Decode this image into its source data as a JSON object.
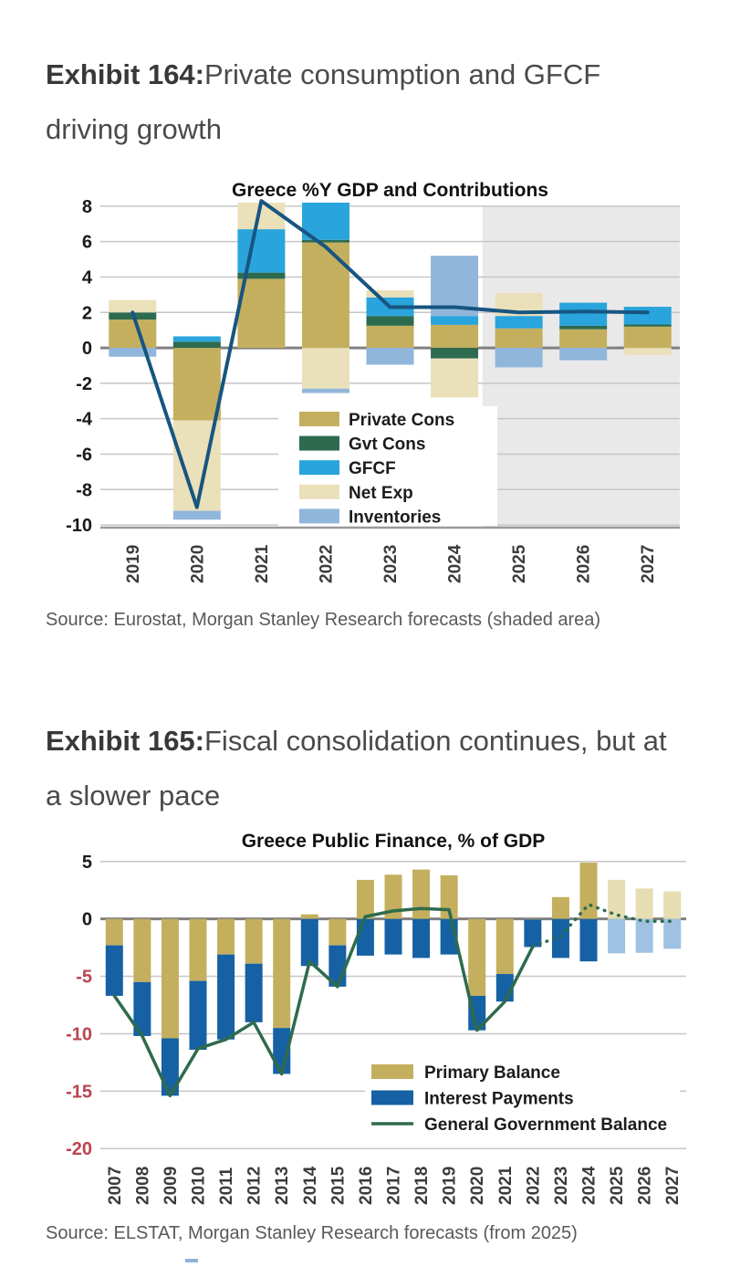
{
  "exhibit1": {
    "label": "Exhibit 164:",
    "title": "Private consumption and GFCF driving growth",
    "source": "Source: Eurostat, Morgan Stanley Research forecasts (shaded area)"
  },
  "exhibit2": {
    "label": "Exhibit 165:",
    "title": "Fiscal consolidation continues, but at a slower pace",
    "source": "Source: ELSTAT, Morgan Stanley Research forecasts (from 2025)"
  },
  "colors": {
    "tan": "#C4AF5E",
    "dark_green": "#2D6B50",
    "bright_blue": "#29A4DC",
    "cream": "#EAE0B9",
    "steel_blue": "#91B6DB",
    "navy_line": "#175581",
    "interest_blue": "#1561A4",
    "pale_tan": "#E6DDB2",
    "pale_blue": "#9FC2E2",
    "green_line": "#2E6B4D",
    "forecast_shade": "#E9E9E9",
    "grid": "#C6C6C6",
    "zero_line": "#808080",
    "tick_black": "#1A1A1A",
    "tick_red": "#BB4450",
    "xlabel": "#3C3C3C",
    "footer_artifact": "#8FB4DA"
  },
  "chart_data": [
    {
      "type": "bar",
      "subtype": "stacked-bars-with-line",
      "title": "Greece %Y GDP and Contributions",
      "categories": [
        "2019",
        "2020",
        "2021",
        "2022",
        "2023",
        "2024",
        "2025",
        "2026",
        "2027"
      ],
      "series": [
        {
          "name": "Private Cons",
          "color": "#C4AF5E",
          "values": [
            1.6,
            -4.1,
            3.9,
            5.95,
            1.25,
            1.3,
            1.1,
            1.05,
            1.2
          ]
        },
        {
          "name": "Gvt Cons",
          "color": "#2D6B50",
          "values": [
            0.4,
            0.35,
            0.35,
            0.15,
            0.55,
            -0.6,
            0.0,
            0.2,
            0.12
          ]
        },
        {
          "name": "GFCF",
          "color": "#29A4DC",
          "values": [
            0.0,
            0.3,
            2.45,
            2.55,
            1.05,
            0.5,
            0.7,
            1.3,
            1.0
          ]
        },
        {
          "name": "Net Exp",
          "color": "#EAE0B9",
          "values": [
            0.7,
            -5.1,
            1.5,
            -2.3,
            0.4,
            -2.2,
            1.3,
            0.0,
            -0.4
          ]
        },
        {
          "name": "Inventories",
          "color": "#91B6DB",
          "values": [
            -0.5,
            -0.5,
            0.0,
            -0.25,
            -0.95,
            3.4,
            -1.1,
            -0.7,
            0.0
          ]
        }
      ],
      "line": {
        "name": "%Y GDP",
        "color": "#175581",
        "values": [
          2.0,
          -9.0,
          8.3,
          5.7,
          2.3,
          2.3,
          2.0,
          2.05,
          2.0
        ]
      },
      "ylim": [
        -10.15,
        8.2
      ],
      "yticks": [
        8,
        6,
        4,
        2,
        0,
        -2,
        -4,
        -6,
        -8,
        -10
      ],
      "grid": true,
      "legend_position": "inside-bottom-center",
      "forecast_shade_from": "2025"
    },
    {
      "type": "bar",
      "subtype": "stacked-bars-with-line",
      "title": "Greece Public Finance, % of GDP",
      "categories": [
        "2007",
        "2008",
        "2009",
        "2010",
        "2011",
        "2012",
        "2013",
        "2014",
        "2015",
        "2016",
        "2017",
        "2018",
        "2019",
        "2020",
        "2021",
        "2022",
        "2023",
        "2024",
        "2025",
        "2026",
        "2027"
      ],
      "series": [
        {
          "name": "Primary Balance",
          "color": "#C4AF5E",
          "forecast_color": "#E6DDB2",
          "values": [
            -2.3,
            -5.5,
            -10.4,
            -5.4,
            -3.1,
            -3.9,
            -9.5,
            0.4,
            -2.3,
            3.4,
            3.85,
            4.3,
            3.8,
            -6.7,
            -4.8,
            -0.05,
            1.9,
            4.9,
            3.4,
            2.65,
            2.4
          ]
        },
        {
          "name": "Interest Payments",
          "color": "#1561A4",
          "forecast_color": "#9FC2E2",
          "values": [
            -4.4,
            -4.7,
            -5.0,
            -6.0,
            -7.4,
            -5.1,
            -4.0,
            -4.1,
            -3.6,
            -3.2,
            -3.1,
            -3.4,
            -3.1,
            -3.0,
            -2.4,
            -2.4,
            -3.4,
            -3.7,
            -3.0,
            -2.95,
            -2.6
          ]
        }
      ],
      "line": {
        "name": "General Government Balance",
        "color": "#2E6B4D",
        "values": [
          -6.7,
          -10.2,
          -15.4,
          -11.3,
          -10.5,
          -9.0,
          -13.5,
          -3.7,
          -5.9,
          0.2,
          0.7,
          0.9,
          0.8,
          -9.7,
          -7.2,
          -2.4,
          -1.5,
          1.25,
          0.35,
          -0.2,
          -0.2
        ],
        "dotted_from": "2023"
      },
      "ylim": [
        -20.3,
        5.3
      ],
      "yticks": [
        5,
        0,
        -5,
        -10,
        -15,
        -20
      ],
      "grid": true,
      "legend_position": "inside-bottom-right",
      "forecast_bars_from": "2025",
      "negative_tick_color": "#BB4450"
    }
  ]
}
